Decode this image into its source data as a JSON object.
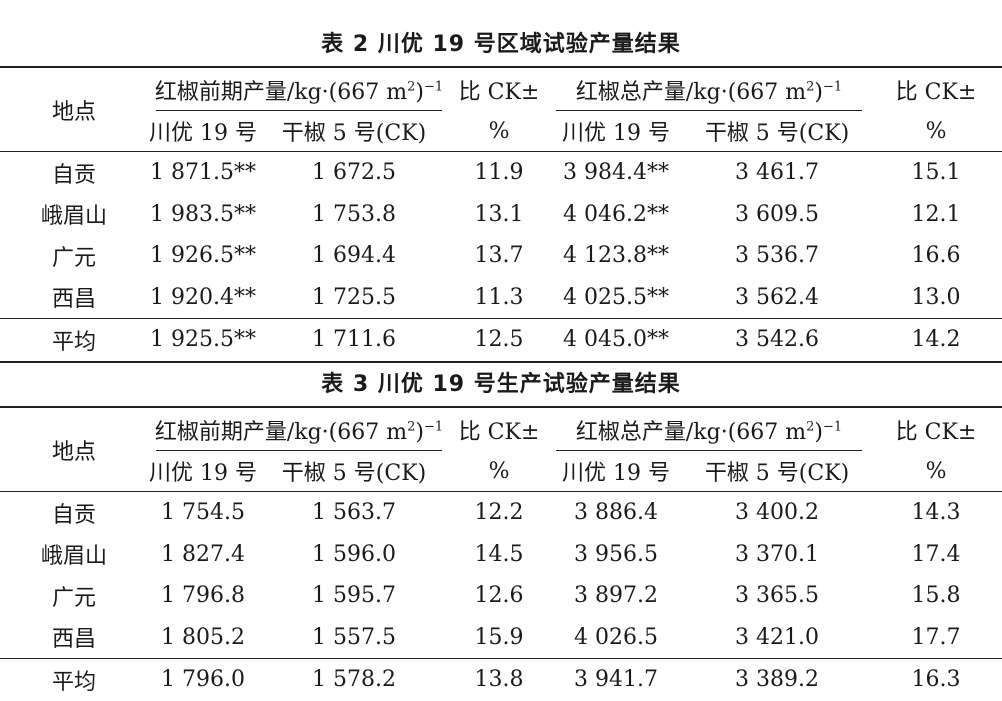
{
  "tables": [
    {
      "caption": "表 2    川优 19 号区域试验产量结果",
      "headers": {
        "location": "地点",
        "early_yield": "红椒前期产量/kg·(667 m",
        "total_yield": "红椒总产量/kg·(667 m",
        "unit_sup": "2",
        "unit_close": ")",
        "unit_exp": "−1",
        "compare": "比 CK±",
        "variety_a": "川优 19 号",
        "variety_b": "干椒 5 号(CK)",
        "percent": "%"
      },
      "rows": [
        [
          "自贡",
          "1 871.5**",
          "1 672.5",
          "11.9",
          "3 984.4**",
          "3 461.7",
          "15.1"
        ],
        [
          "峨眉山",
          "1 983.5**",
          "1 753.8",
          "13.1",
          "4 046.2**",
          "3 609.5",
          "12.1"
        ],
        [
          "广元",
          "1 926.5**",
          "1 694.4",
          "13.7",
          "4 123.8**",
          "3 536.7",
          "16.6"
        ],
        [
          "西昌",
          "1 920.4**",
          "1 725.5",
          "11.3",
          "4 025.5**",
          "3 562.4",
          "13.0"
        ]
      ],
      "average": [
        "平均",
        "1 925.5**",
        "1 711.6",
        "12.5",
        "4 045.0**",
        "3 542.6",
        "14.2"
      ]
    },
    {
      "caption": "表 3    川优 19 号生产试验产量结果",
      "headers": {
        "location": "地点",
        "early_yield": "红椒前期产量/kg·(667 m",
        "total_yield": "红椒总产量/kg·(667 m",
        "unit_sup": "2",
        "unit_close": ")",
        "unit_exp": "−1",
        "compare": "比 CK±",
        "variety_a": "川优 19 号",
        "variety_b": "干椒 5 号(CK)",
        "percent": "%"
      },
      "rows": [
        [
          "自贡",
          "1 754.5",
          "1 563.7",
          "12.2",
          "3 886.4",
          "3 400.2",
          "14.3"
        ],
        [
          "峨眉山",
          "1 827.4",
          "1 596.0",
          "14.5",
          "3 956.5",
          "3 370.1",
          "17.4"
        ],
        [
          "广元",
          "1 796.8",
          "1 595.7",
          "12.6",
          "3 897.2",
          "3 365.5",
          "15.8"
        ],
        [
          "西昌",
          "1 805.2",
          "1 557.5",
          "15.9",
          "4 026.5",
          "3 421.0",
          "17.7"
        ]
      ],
      "average": [
        "平均",
        "1 796.0",
        "1 578.2",
        "13.8",
        "3 941.7",
        "3 389.2",
        "16.3"
      ]
    }
  ]
}
